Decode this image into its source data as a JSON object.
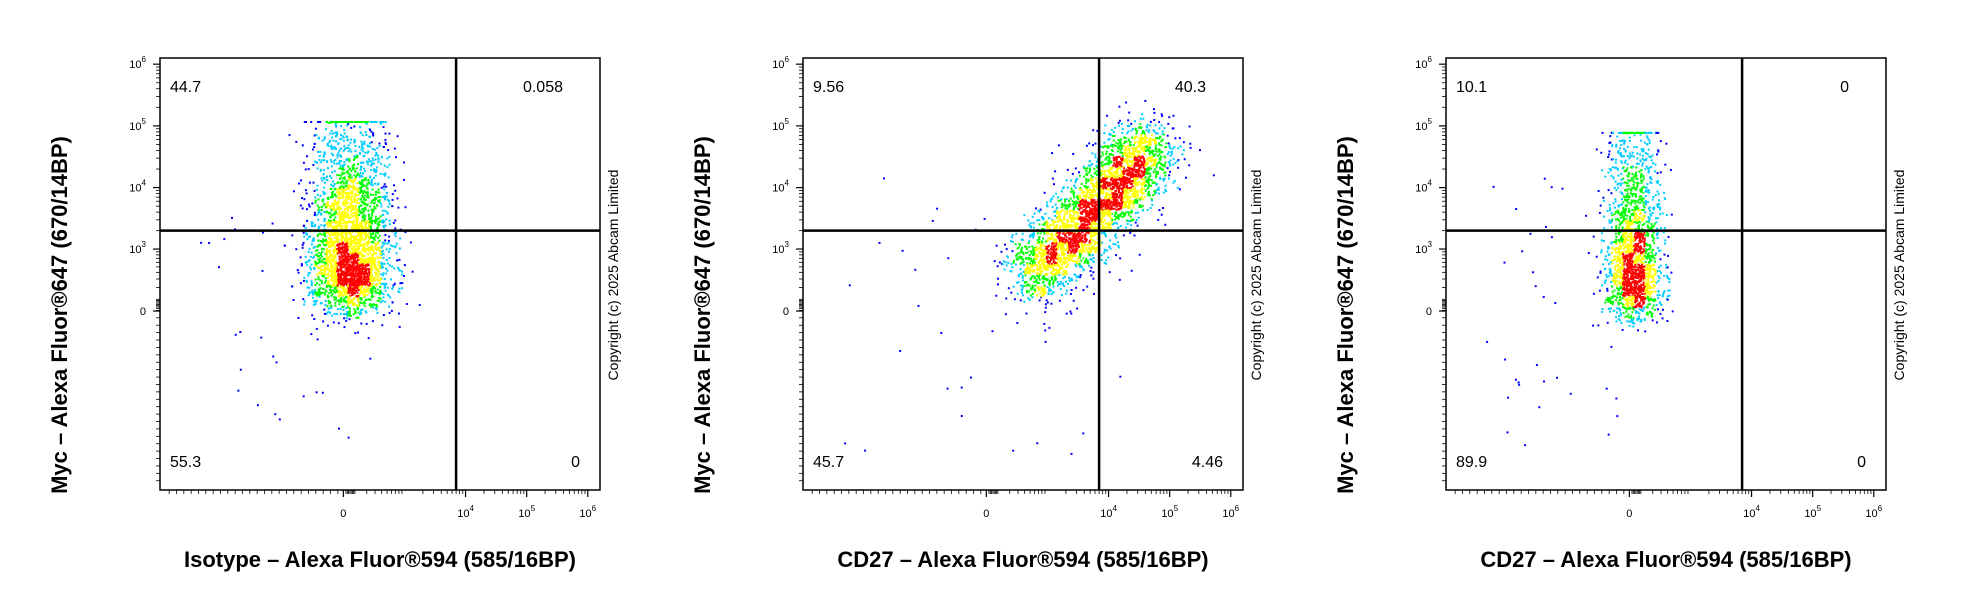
{
  "chart_data": [
    {
      "type": "scatter",
      "xlabel": "Isotype – Alexa Fluor®594 (585/16BP)",
      "ylabel": "Myc – Alexa Fluor®647 (670/14BP)",
      "copyright": "Copyright (c) 2025 Abcam Limited",
      "quadrants": {
        "upper_left": "44.7",
        "upper_right": "0.058",
        "lower_left": "55.3",
        "lower_right": "0"
      },
      "gate": {
        "x": 7000,
        "y": 2000
      },
      "x_ticks": [
        {
          "value": 0,
          "label": "0"
        },
        {
          "value": 10000,
          "base": "10",
          "exp": "4"
        },
        {
          "value": 100000,
          "base": "10",
          "exp": "5"
        },
        {
          "value": 1000000,
          "base": "10",
          "exp": "6"
        }
      ],
      "y_ticks": [
        {
          "value": 0,
          "label": "0"
        },
        {
          "value": 1000,
          "base": "10",
          "exp": "3"
        },
        {
          "value": 10000,
          "base": "10",
          "exp": "4"
        },
        {
          "value": 100000,
          "base": "10",
          "exp": "5"
        },
        {
          "value": 1000000,
          "base": "10",
          "exp": "6"
        }
      ],
      "populations": [
        {
          "x_center": 50,
          "x_spread": 0.32,
          "y_min": 200,
          "y_max": 120000,
          "y_peak": 350,
          "density": "high"
        }
      ],
      "scale": "biexponential",
      "colormap": [
        "#0000ff",
        "#00ccff",
        "#00ff00",
        "#ffff00",
        "#ff0000"
      ]
    },
    {
      "type": "scatter",
      "xlabel": "CD27 – Alexa Fluor®594 (585/16BP)",
      "ylabel": "Myc – Alexa Fluor®647 (670/14BP)",
      "copyright": "Copyright (c) 2025 Abcam Limited",
      "quadrants": {
        "upper_left": "9.56",
        "upper_right": "40.3",
        "lower_left": "45.7",
        "lower_right": "4.46"
      },
      "gate": {
        "x": 7000,
        "y": 2000
      },
      "x_ticks": [
        {
          "value": 0,
          "label": "0"
        },
        {
          "value": 10000,
          "base": "10",
          "exp": "4"
        },
        {
          "value": 100000,
          "base": "10",
          "exp": "5"
        },
        {
          "value": 1000000,
          "base": "10",
          "exp": "6"
        }
      ],
      "y_ticks": [
        {
          "value": 0,
          "label": "0"
        },
        {
          "value": 1000,
          "base": "10",
          "exp": "3"
        },
        {
          "value": 10000,
          "base": "10",
          "exp": "4"
        },
        {
          "value": 100000,
          "base": "10",
          "exp": "5"
        },
        {
          "value": 1000000,
          "base": "10",
          "exp": "6"
        }
      ],
      "populations": [
        {
          "from": [
            500,
            300
          ],
          "to": [
            50000,
            50000
          ],
          "density": "high"
        }
      ],
      "scale": "biexponential",
      "colormap": [
        "#0000ff",
        "#00ccff",
        "#00ff00",
        "#ffff00",
        "#ff0000"
      ]
    },
    {
      "type": "scatter",
      "xlabel": "CD27 – Alexa Fluor®594 (585/16BP)",
      "ylabel": "Myc – Alexa Fluor®647 (670/14BP)",
      "copyright": "Copyright (c) 2025 Abcam Limited",
      "quadrants": {
        "upper_left": "10.1",
        "upper_right": "0",
        "lower_left": "89.9",
        "lower_right": "0"
      },
      "gate": {
        "x": 7000,
        "y": 2000
      },
      "x_ticks": [
        {
          "value": 0,
          "label": "0"
        },
        {
          "value": 10000,
          "base": "10",
          "exp": "4"
        },
        {
          "value": 100000,
          "base": "10",
          "exp": "5"
        },
        {
          "value": 1000000,
          "base": "10",
          "exp": "6"
        }
      ],
      "y_ticks": [
        {
          "value": 0,
          "label": "0"
        },
        {
          "value": 1000,
          "base": "10",
          "exp": "3"
        },
        {
          "value": 10000,
          "base": "10",
          "exp": "4"
        },
        {
          "value": 100000,
          "base": "10",
          "exp": "5"
        },
        {
          "value": 1000000,
          "base": "10",
          "exp": "6"
        }
      ],
      "populations": [
        {
          "x_center": 30,
          "x_spread": 0.22,
          "y_min": 150,
          "y_max": 80000,
          "y_peak": 250,
          "density": "high"
        }
      ],
      "scale": "biexponential",
      "colormap": [
        "#0000ff",
        "#00ccff",
        "#00ff00",
        "#ffff00",
        "#ff0000"
      ]
    }
  ]
}
